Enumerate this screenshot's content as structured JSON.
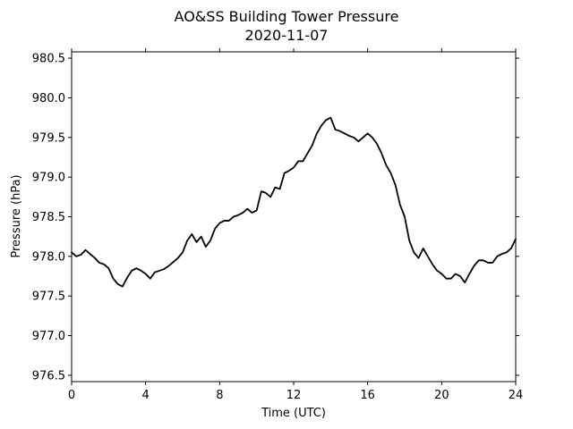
{
  "chart_data": {
    "type": "line",
    "title": "AO&SS Building Tower Pressure",
    "subtitle": "2020-11-07",
    "xlabel": "Time (UTC)",
    "ylabel": "Pressure (hPa)",
    "xlim": [
      0,
      24
    ],
    "ylim": [
      976.42,
      980.58
    ],
    "xticks": [
      0,
      4,
      8,
      12,
      16,
      20,
      24
    ],
    "xtick_labels": [
      "0",
      "4",
      "8",
      "12",
      "16",
      "20",
      "24"
    ],
    "yticks": [
      976.5,
      977.0,
      977.5,
      978.0,
      978.5,
      979.0,
      979.5,
      980.0,
      980.5
    ],
    "ytick_labels": [
      "976.5",
      "977.0",
      "977.5",
      "978.0",
      "978.5",
      "979.0",
      "979.5",
      "980.0",
      "980.5"
    ],
    "grid": false,
    "line_color": "#000000",
    "series": [
      {
        "x": [
          0.0,
          0.25,
          0.5,
          0.75,
          1.0,
          1.25,
          1.5,
          1.75,
          2.0,
          2.25,
          2.5,
          2.75,
          3.0,
          3.25,
          3.5,
          3.75,
          4.0,
          4.25,
          4.5,
          4.75,
          5.0,
          5.25,
          5.5,
          5.75,
          6.0,
          6.25,
          6.5,
          6.75,
          7.0,
          7.25,
          7.5,
          7.75,
          8.0,
          8.25,
          8.5,
          8.75,
          9.0,
          9.25,
          9.5,
          9.75,
          10.0,
          10.25,
          10.5,
          10.75,
          11.0,
          11.25,
          11.5,
          11.75,
          12.0,
          12.25,
          12.5,
          12.75,
          13.0,
          13.25,
          13.5,
          13.75,
          14.0,
          14.25,
          14.5,
          14.75,
          15.0,
          15.25,
          15.5,
          15.75,
          16.0,
          16.25,
          16.5,
          16.75,
          17.0,
          17.25,
          17.5,
          17.75,
          18.0,
          18.25,
          18.5,
          18.75,
          19.0,
          19.25,
          19.5,
          19.75,
          20.0,
          20.25,
          20.5,
          20.75,
          21.0,
          21.25,
          21.5,
          21.75,
          22.0,
          22.25,
          22.5,
          22.75,
          23.0,
          23.25,
          23.5,
          23.75,
          24.0
        ],
        "values": [
          978.05,
          978.0,
          978.02,
          978.08,
          978.03,
          977.98,
          977.92,
          977.9,
          977.85,
          977.72,
          977.65,
          977.62,
          977.73,
          977.82,
          977.85,
          977.82,
          977.78,
          977.72,
          977.8,
          977.82,
          977.84,
          977.88,
          977.93,
          977.98,
          978.05,
          978.2,
          978.28,
          978.18,
          978.25,
          978.12,
          978.2,
          978.35,
          978.42,
          978.45,
          978.45,
          978.5,
          978.52,
          978.55,
          978.6,
          978.55,
          978.58,
          978.82,
          978.8,
          978.75,
          978.87,
          978.85,
          979.05,
          979.08,
          979.12,
          979.2,
          979.2,
          979.3,
          979.4,
          979.55,
          979.65,
          979.72,
          979.75,
          979.6,
          979.58,
          979.55,
          979.52,
          979.5,
          979.45,
          979.5,
          979.55,
          979.5,
          979.42,
          979.3,
          979.15,
          979.05,
          978.9,
          978.65,
          978.5,
          978.2,
          978.05,
          977.98,
          978.1,
          978.0,
          977.9,
          977.82,
          977.78,
          977.72,
          977.72,
          977.78,
          977.75,
          977.67,
          977.78,
          977.88,
          977.95,
          977.95,
          977.92,
          977.92,
          978.0,
          978.03,
          978.05,
          978.1,
          978.22
        ]
      }
    ]
  }
}
